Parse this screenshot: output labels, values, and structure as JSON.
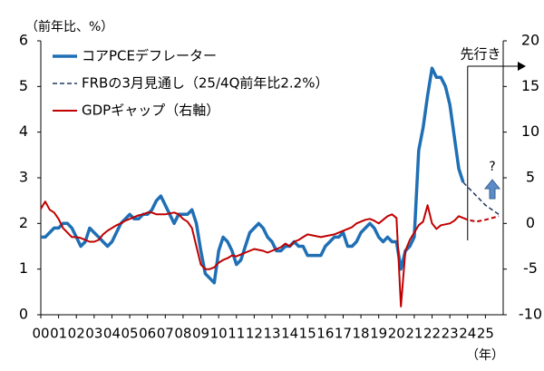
{
  "chart_data": {
    "type": "line",
    "y_axis_label": "（前年比、%）",
    "x_axis_label": "（年）",
    "annotations": [
      "先行き",
      "?"
    ],
    "forecast_start": 2024,
    "xlim": [
      2000,
      2026
    ],
    "xticks": [
      {
        "value": 2000,
        "label": "00"
      },
      {
        "value": 2001,
        "label": "01"
      },
      {
        "value": 2002,
        "label": "02"
      },
      {
        "value": 2003,
        "label": "03"
      },
      {
        "value": 2004,
        "label": "04"
      },
      {
        "value": 2005,
        "label": "05"
      },
      {
        "value": 2006,
        "label": "06"
      },
      {
        "value": 2007,
        "label": "07"
      },
      {
        "value": 2008,
        "label": "08"
      },
      {
        "value": 2009,
        "label": "09"
      },
      {
        "value": 2010,
        "label": "10"
      },
      {
        "value": 2011,
        "label": "11"
      },
      {
        "value": 2012,
        "label": "12"
      },
      {
        "value": 2013,
        "label": "13"
      },
      {
        "value": 2014,
        "label": "14"
      },
      {
        "value": 2015,
        "label": "15"
      },
      {
        "value": 2016,
        "label": "16"
      },
      {
        "value": 2017,
        "label": "17"
      },
      {
        "value": 2018,
        "label": "18"
      },
      {
        "value": 2019,
        "label": "19"
      },
      {
        "value": 2020,
        "label": "20"
      },
      {
        "value": 2021,
        "label": "21"
      },
      {
        "value": 2022,
        "label": "22"
      },
      {
        "value": 2023,
        "label": "23"
      },
      {
        "value": 2024,
        "label": "24"
      },
      {
        "value": 2025,
        "label": "25"
      }
    ],
    "ylim": [
      0,
      6
    ],
    "yticks": [
      0,
      1,
      2,
      3,
      4,
      5,
      6
    ],
    "y2lim": [
      -10,
      20
    ],
    "y2ticks": [
      -10,
      -5,
      0,
      5,
      10,
      15,
      20
    ],
    "grid": false,
    "legend": "upper left",
    "x": [
      2000,
      2000.25,
      2000.5,
      2000.75,
      2001,
      2001.25,
      2001.5,
      2001.75,
      2002,
      2002.25,
      2002.5,
      2002.75,
      2003,
      2003.25,
      2003.5,
      2003.75,
      2004,
      2004.25,
      2004.5,
      2004.75,
      2005,
      2005.25,
      2005.5,
      2005.75,
      2006,
      2006.25,
      2006.5,
      2006.75,
      2007,
      2007.25,
      2007.5,
      2007.75,
      2008,
      2008.25,
      2008.5,
      2008.75,
      2009,
      2009.25,
      2009.5,
      2009.75,
      2010,
      2010.25,
      2010.5,
      2010.75,
      2011,
      2011.25,
      2011.5,
      2011.75,
      2012,
      2012.25,
      2012.5,
      2012.75,
      2013,
      2013.25,
      2013.5,
      2013.75,
      2014,
      2014.25,
      2014.5,
      2014.75,
      2015,
      2015.25,
      2015.5,
      2015.75,
      2016,
      2016.25,
      2016.5,
      2016.75,
      2017,
      2017.25,
      2017.5,
      2017.75,
      2018,
      2018.25,
      2018.5,
      2018.75,
      2019,
      2019.25,
      2019.5,
      2019.75,
      2020,
      2020.25,
      2020.5,
      2020.75,
      2021,
      2021.25,
      2021.5,
      2021.75,
      2022,
      2022.25,
      2022.5,
      2022.75,
      2023,
      2023.25,
      2023.5,
      2023.75
    ],
    "series": [
      {
        "name": "コアPCEデフレーター",
        "color": "#1f6fb5",
        "width": 3.5,
        "values": [
          1.7,
          1.7,
          1.8,
          1.9,
          1.9,
          2.0,
          2.0,
          1.9,
          1.7,
          1.5,
          1.6,
          1.9,
          1.8,
          1.7,
          1.6,
          1.5,
          1.6,
          1.8,
          2.0,
          2.1,
          2.2,
          2.1,
          2.1,
          2.2,
          2.2,
          2.3,
          2.5,
          2.6,
          2.4,
          2.2,
          2.0,
          2.2,
          2.2,
          2.2,
          2.3,
          2.0,
          1.4,
          0.9,
          0.8,
          0.7,
          1.4,
          1.7,
          1.6,
          1.4,
          1.1,
          1.2,
          1.5,
          1.8,
          1.9,
          2.0,
          1.9,
          1.7,
          1.6,
          1.4,
          1.4,
          1.5,
          1.5,
          1.6,
          1.5,
          1.5,
          1.3,
          1.3,
          1.3,
          1.3,
          1.5,
          1.6,
          1.7,
          1.7,
          1.8,
          1.5,
          1.5,
          1.6,
          1.8,
          1.9,
          2.0,
          1.9,
          1.7,
          1.6,
          1.7,
          1.6,
          1.6,
          1.0,
          1.4,
          1.5,
          1.7,
          3.6,
          4.1,
          4.8,
          5.4,
          5.2,
          5.2,
          5.0,
          4.6,
          3.9,
          3.2,
          2.9
        ]
      },
      {
        "name": "FRBの3月見通し（25/4Q前年比2.2%）",
        "color": "#1f3864",
        "width": 1.5,
        "dashed": true,
        "x": [
          2023.75,
          2024,
          2024.5,
          2025,
          2025.75
        ],
        "values": [
          2.9,
          2.8,
          2.6,
          2.4,
          2.2
        ]
      },
      {
        "name": "GDPギャップ（右軸）",
        "color": "#c00000",
        "width": 2,
        "axis": "y2",
        "values": [
          1.6,
          2.4,
          1.5,
          1.2,
          0.5,
          -0.5,
          -1.0,
          -1.5,
          -1.5,
          -1.6,
          -1.8,
          -2.0,
          -2.0,
          -1.8,
          -1.2,
          -0.8,
          -0.5,
          -0.2,
          0,
          0.3,
          0.5,
          0.7,
          0.9,
          1.0,
          1.2,
          1.2,
          1.0,
          1.0,
          1.0,
          1.1,
          1.2,
          1.0,
          0.5,
          0.2,
          -0.5,
          -2.5,
          -4.5,
          -5.0,
          -5.0,
          -4.8,
          -4.3,
          -4.0,
          -3.8,
          -3.5,
          -3.6,
          -3.4,
          -3.2,
          -3.0,
          -2.8,
          -2.9,
          -3.0,
          -3.2,
          -3.0,
          -2.8,
          -2.6,
          -2.2,
          -2.5,
          -2.0,
          -1.8,
          -1.5,
          -1.2,
          -1.3,
          -1.4,
          -1.5,
          -1.4,
          -1.3,
          -1.2,
          -1.0,
          -0.8,
          -0.6,
          -0.4,
          0.0,
          0.2,
          0.4,
          0.5,
          0.3,
          0.0,
          0.4,
          0.8,
          1.0,
          0.6,
          -9.1,
          -3.0,
          -1.8,
          -1.0,
          -0.2,
          0.2,
          2.0,
          0.0,
          -0.6,
          -0.2,
          -0.1,
          0.0,
          0.3,
          0.8,
          0.6
        ]
      },
      {
        "color": "#c00000",
        "width": 2,
        "axis": "y2",
        "dashed": true,
        "x": [
          2023.75,
          2024,
          2024.5,
          2025,
          2025.75
        ],
        "values": [
          0.6,
          0.4,
          0.2,
          0.4,
          0.8
        ]
      }
    ]
  }
}
